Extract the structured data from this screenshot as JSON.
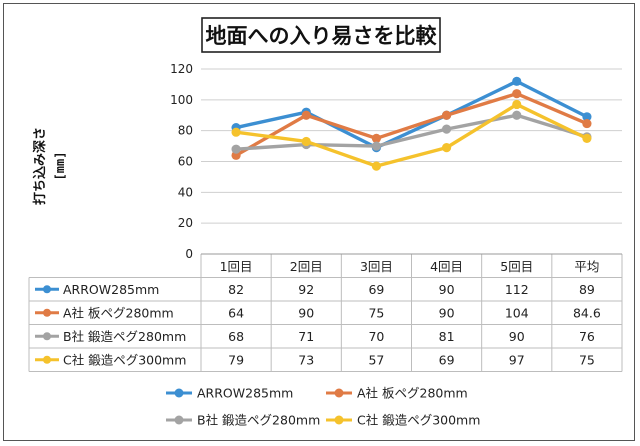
{
  "chart_data": {
    "type": "line",
    "title": "地面への入り易さを比較",
    "ylabel": "打ち込み深さ",
    "yunit": "[mm]",
    "xlabel": "",
    "categories": [
      "1回目",
      "2回目",
      "3回目",
      "4回目",
      "5回目",
      "平均"
    ],
    "ylim": [
      0,
      120
    ],
    "yticks": [
      0,
      20,
      40,
      60,
      80,
      100,
      120
    ],
    "grid": true,
    "legend_position": "bottom",
    "series": [
      {
        "name": "ARROW285mm",
        "color": "#3c8fd2",
        "values": [
          82,
          92,
          69,
          90,
          112,
          89
        ],
        "labels": [
          "82",
          "92",
          "69",
          "90",
          "112",
          "89"
        ]
      },
      {
        "name": "A社 板ペグ280mm",
        "color": "#e07b45",
        "values": [
          64,
          90,
          75,
          90,
          104,
          84.6
        ],
        "labels": [
          "64",
          "90",
          "75",
          "90",
          "104",
          "84.6"
        ]
      },
      {
        "name": "B社 鍛造ペグ280mm",
        "color": "#a3a3a3",
        "values": [
          68,
          71,
          70,
          81,
          90,
          76
        ],
        "labels": [
          "68",
          "71",
          "70",
          "81",
          "90",
          "76"
        ]
      },
      {
        "name": "C社 鍛造ペグ300mm",
        "color": "#f5c22c",
        "values": [
          79,
          73,
          57,
          69,
          97,
          75
        ],
        "labels": [
          "79",
          "73",
          "57",
          "69",
          "97",
          "75"
        ]
      }
    ]
  }
}
